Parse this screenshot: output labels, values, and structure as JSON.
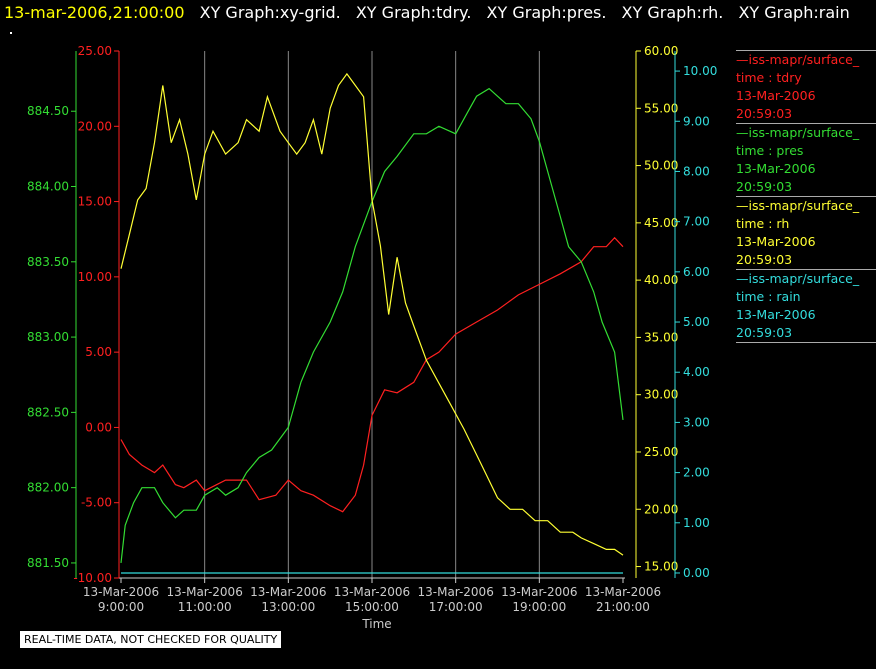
{
  "header": {
    "timestamp": "13-mar-2006,21:00:00",
    "graphs": [
      "XY Graph:xy-grid.",
      "XY Graph:tdry.",
      "XY Graph:pres.",
      "XY Graph:rh.",
      "XY Graph:rain"
    ]
  },
  "footer": {
    "disclaimer": "REAL-TIME DATA, NOT CHECKED FOR QUALITY"
  },
  "legend": [
    {
      "source": "—iss-mapr/surface_",
      "var": "time : tdry",
      "date": "13-Mar-2006",
      "time": "20:59:03",
      "color": "#ff2020"
    },
    {
      "source": "—iss-mapr/surface_",
      "var": "time : pres",
      "date": "13-Mar-2006",
      "time": "20:59:03",
      "color": "#33dd33"
    },
    {
      "source": "—iss-mapr/surface_",
      "var": "time : rh",
      "date": "13-Mar-2006",
      "time": "20:59:03",
      "color": "#ffff33"
    },
    {
      "source": "—iss-mapr/surface_",
      "var": "time : rain",
      "date": "13-Mar-2006",
      "time": "20:59:03",
      "color": "#33dddd"
    }
  ],
  "chart_data": {
    "type": "line",
    "xlabel": "Time",
    "x_ticks": [
      {
        "date": "13-Mar-2006",
        "time": "9:00:00"
      },
      {
        "date": "13-Mar-2006",
        "time": "11:00:00"
      },
      {
        "date": "13-Mar-2006",
        "time": "13:00:00"
      },
      {
        "date": "13-Mar-2006",
        "time": "15:00:00"
      },
      {
        "date": "13-Mar-2006",
        "time": "17:00:00"
      },
      {
        "date": "13-Mar-2006",
        "time": "19:00:00"
      },
      {
        "date": "13-Mar-2006",
        "time": "21:00:00"
      }
    ],
    "xlim_hours": [
      9.0,
      21.0
    ],
    "grid": "vertical",
    "axes": {
      "pres": {
        "color": "#33dd33",
        "ylim": [
          881.4,
          884.9
        ],
        "ticks": [
          "884.50",
          "884.00",
          "883.50",
          "883.00",
          "882.50",
          "882.00",
          "881.50"
        ]
      },
      "tdry": {
        "color": "#ff2020",
        "ylim": [
          -10.0,
          25.0
        ],
        "ticks": [
          "25.00",
          "20.00",
          "15.00",
          "10.00",
          "5.00",
          "0.00",
          "-5.00",
          "-10.00"
        ]
      },
      "rh": {
        "color": "#ffff33",
        "ylim": [
          14.0,
          60.0
        ],
        "ticks": [
          "60.00",
          "55.00",
          "50.00",
          "45.00",
          "40.00",
          "35.00",
          "30.00",
          "25.00",
          "20.00",
          "15.00"
        ]
      },
      "rain": {
        "color": "#33dddd",
        "ylim": [
          -0.1,
          10.4
        ],
        "ticks": [
          "10.00",
          "9.00",
          "8.00",
          "7.00",
          "6.00",
          "5.00",
          "4.00",
          "3.00",
          "2.00",
          "1.00",
          "0.00"
        ]
      }
    },
    "series": [
      {
        "name": "tdry",
        "axis": "tdry",
        "color": "#ff2020",
        "x": [
          9.0,
          9.2,
          9.5,
          9.8,
          10.0,
          10.3,
          10.5,
          10.8,
          11.0,
          11.5,
          12.0,
          12.3,
          12.7,
          13.0,
          13.3,
          13.6,
          14.0,
          14.3,
          14.6,
          14.8,
          15.0,
          15.3,
          15.6,
          16.0,
          16.3,
          16.6,
          17.0,
          17.5,
          18.0,
          18.5,
          19.0,
          19.5,
          20.0,
          20.3,
          20.6,
          20.8,
          21.0
        ],
        "y": [
          -0.8,
          -1.8,
          -2.5,
          -3.0,
          -2.5,
          -3.8,
          -4.0,
          -3.5,
          -4.2,
          -3.5,
          -3.5,
          -4.8,
          -4.5,
          -3.5,
          -4.2,
          -4.5,
          -5.2,
          -5.6,
          -4.5,
          -2.5,
          0.8,
          2.5,
          2.3,
          3.0,
          4.5,
          5.0,
          6.2,
          7.0,
          7.8,
          8.8,
          9.5,
          10.2,
          11.0,
          12.0,
          12.0,
          12.6,
          12.0
        ]
      },
      {
        "name": "pres",
        "axis": "pres",
        "color": "#33dd33",
        "x": [
          9.0,
          9.1,
          9.3,
          9.5,
          9.8,
          10.0,
          10.3,
          10.5,
          10.8,
          11.0,
          11.3,
          11.5,
          11.8,
          12.0,
          12.3,
          12.6,
          13.0,
          13.3,
          13.6,
          14.0,
          14.3,
          14.6,
          15.0,
          15.3,
          15.6,
          16.0,
          16.3,
          16.6,
          17.0,
          17.3,
          17.5,
          17.8,
          18.0,
          18.2,
          18.5,
          18.8,
          19.0,
          19.3,
          19.5,
          19.7,
          20.0,
          20.3,
          20.5,
          20.8,
          21.0
        ],
        "y": [
          881.5,
          881.75,
          881.9,
          882.0,
          882.0,
          881.9,
          881.8,
          881.85,
          881.85,
          881.95,
          882.0,
          881.95,
          882.0,
          882.1,
          882.2,
          882.25,
          882.4,
          882.7,
          882.9,
          883.1,
          883.3,
          883.6,
          883.9,
          884.1,
          884.2,
          884.35,
          884.35,
          884.4,
          884.35,
          884.5,
          884.6,
          884.65,
          884.6,
          884.55,
          884.55,
          884.45,
          884.3,
          884.0,
          883.8,
          883.6,
          883.5,
          883.3,
          883.1,
          882.9,
          882.45
        ]
      },
      {
        "name": "rh",
        "axis": "rh",
        "color": "#ffff33",
        "x": [
          9.0,
          9.2,
          9.4,
          9.6,
          9.8,
          10.0,
          10.2,
          10.4,
          10.6,
          10.8,
          11.0,
          11.2,
          11.5,
          11.8,
          12.0,
          12.3,
          12.5,
          12.8,
          13.0,
          13.2,
          13.4,
          13.6,
          13.8,
          14.0,
          14.2,
          14.4,
          14.6,
          14.8,
          15.0,
          15.2,
          15.4,
          15.6,
          15.8,
          16.0,
          16.3,
          16.6,
          16.9,
          17.2,
          17.6,
          18.0,
          18.3,
          18.6,
          18.9,
          19.2,
          19.5,
          19.8,
          20.0,
          20.3,
          20.6,
          20.8,
          21.0
        ],
        "y": [
          41,
          44,
          47,
          48,
          52,
          57,
          52,
          54,
          51,
          47,
          51,
          53,
          51,
          52,
          54,
          53,
          56,
          53,
          52,
          51,
          52,
          54,
          51,
          55,
          57,
          58,
          57,
          56,
          47,
          43,
          37,
          42,
          38,
          36,
          33,
          31,
          29,
          27,
          24,
          21,
          20,
          20,
          19,
          19,
          18,
          18,
          17.5,
          17,
          16.5,
          16.5,
          16
        ]
      },
      {
        "name": "rain",
        "axis": "rain",
        "color": "#33dddd",
        "x": [
          9.0,
          21.0
        ],
        "y": [
          0.0,
          0.0
        ]
      }
    ]
  }
}
